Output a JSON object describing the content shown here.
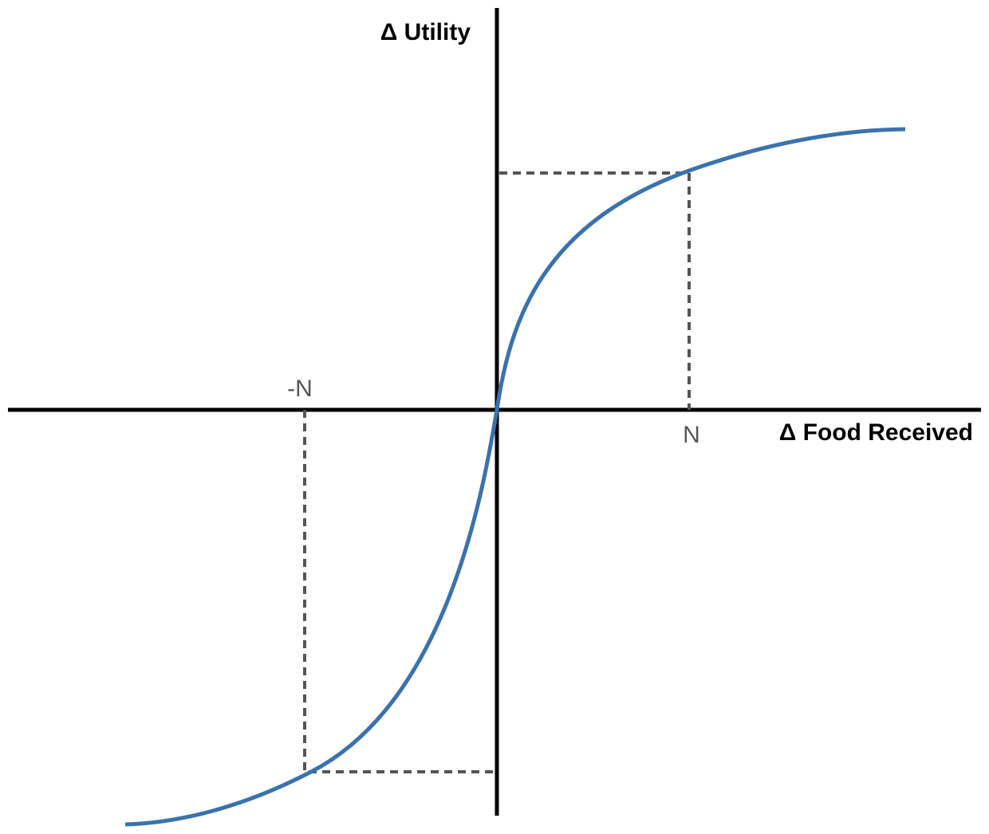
{
  "axes": {
    "y_label": "Δ Utility",
    "x_label": "Δ Food Received"
  },
  "markers": {
    "negative": "-N",
    "positive": "N"
  }
}
